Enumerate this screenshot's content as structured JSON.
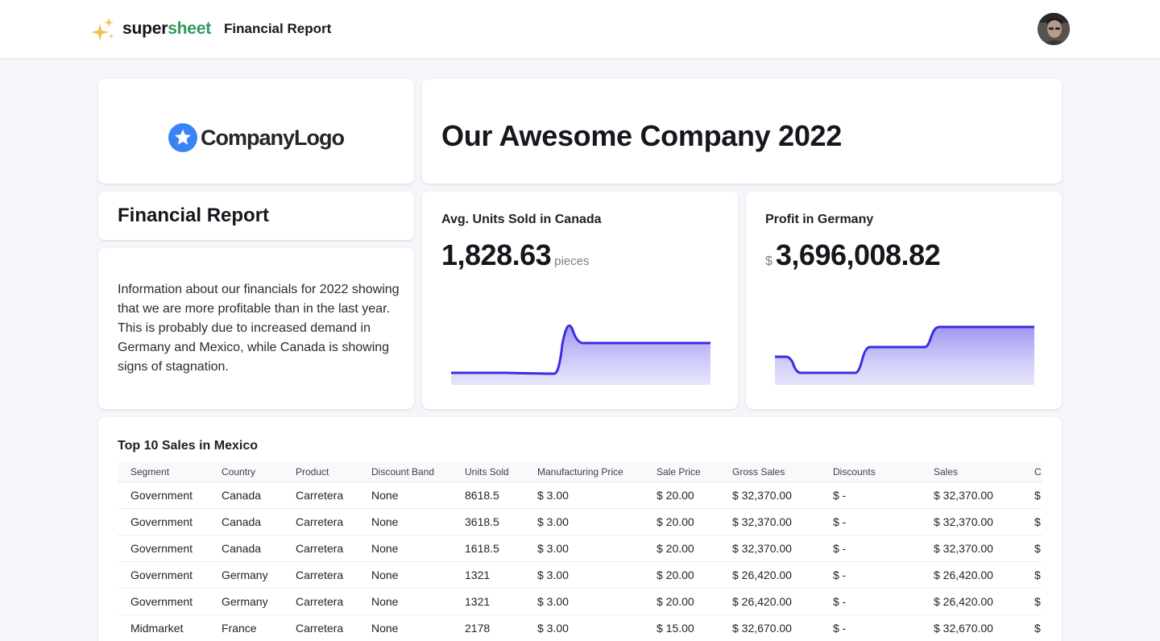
{
  "app": {
    "brand_part1": "super",
    "brand_part2": "sheet",
    "page_title": "Financial Report",
    "brand_colors": {
      "dark": "#15151a",
      "green": "#2e9b5c",
      "sparkle": "#f2c14e"
    }
  },
  "logo": {
    "text": "CompanyLogo",
    "icon": "star-badge-icon",
    "color": "#3b82f6"
  },
  "company_title": "Our Awesome Company 2022",
  "report": {
    "title": "Financial Report",
    "description": "Information about our financials for 2022 showing that we are more profitable than in the last year. This is probably due to increased demand in Germany and Mexico, while Canada is showing signs of stagnation."
  },
  "kpis": [
    {
      "label": "Avg. Units Sold in Canada",
      "value": "1,828.63",
      "unit": "pieces",
      "prefix": ""
    },
    {
      "label": "Profit in Germany",
      "value": "3,696,008.82",
      "unit": "",
      "prefix": "$"
    }
  ],
  "accent_color": "#3b2ee0",
  "table": {
    "title": "Top 10 Sales in Mexico",
    "columns": [
      "Segment",
      "Country",
      "Product",
      "Discount Band",
      "Units Sold",
      "Manufacturing Price",
      "Sale Price",
      "Gross Sales",
      "Discounts",
      "Sales",
      "C"
    ],
    "rows": [
      [
        "Government",
        "Canada",
        "Carretera",
        "None",
        "8618.5",
        "$ 3.00",
        "$ 20.00",
        "$ 32,370.00",
        "$ -",
        "$ 32,370.00",
        "$"
      ],
      [
        "Government",
        "Canada",
        "Carretera",
        "None",
        "3618.5",
        "$ 3.00",
        "$ 20.00",
        "$ 32,370.00",
        "$ -",
        "$ 32,370.00",
        "$"
      ],
      [
        "Government",
        "Canada",
        "Carretera",
        "None",
        "1618.5",
        "$ 3.00",
        "$ 20.00",
        "$ 32,370.00",
        "$ -",
        "$ 32,370.00",
        "$"
      ],
      [
        "Government",
        "Germany",
        "Carretera",
        "None",
        "1321",
        "$ 3.00",
        "$ 20.00",
        "$ 26,420.00",
        "$ -",
        "$ 26,420.00",
        "$"
      ],
      [
        "Government",
        "Germany",
        "Carretera",
        "None",
        "1321",
        "$ 3.00",
        "$ 20.00",
        "$ 26,420.00",
        "$ -",
        "$ 26,420.00",
        "$"
      ],
      [
        "Midmarket",
        "France",
        "Carretera",
        "None",
        "2178",
        "$ 3.00",
        "$ 15.00",
        "$ 32,670.00",
        "$ -",
        "$ 32,670.00",
        "$"
      ]
    ]
  }
}
